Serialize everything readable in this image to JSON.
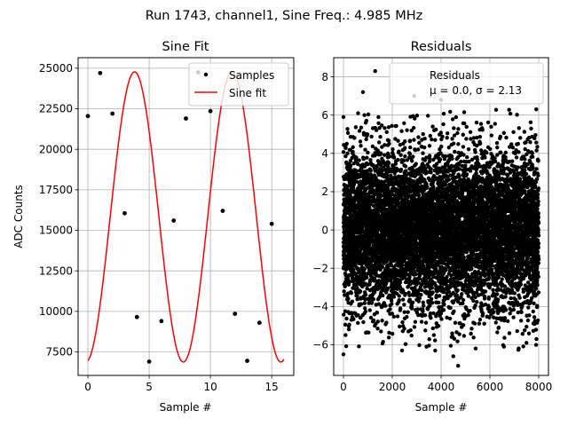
{
  "suptitle": "Run 1743, channel1, Sine Freq.: 4.985 MHz",
  "chart_data": [
    {
      "type": "scatter",
      "title": "Sine Fit",
      "xlabel": "Sample #",
      "ylabel": "ADC Counts",
      "xlim": [
        -0.8,
        16.8
      ],
      "ylim": [
        6050,
        25650
      ],
      "xticks": [
        0,
        5,
        10,
        15
      ],
      "yticks": [
        7500,
        10000,
        12500,
        15000,
        17500,
        20000,
        22500,
        25000
      ],
      "grid": true,
      "legend_position": "top-right",
      "series": [
        {
          "name": "Samples",
          "kind": "points",
          "color": "#000000",
          "x": [
            0,
            1,
            2,
            3,
            4,
            5,
            6,
            7,
            8,
            9,
            10,
            11,
            12,
            13,
            14,
            15
          ],
          "y": [
            22050,
            24700,
            22200,
            16050,
            9650,
            6900,
            9400,
            15600,
            21900,
            24750,
            22350,
            16200,
            9850,
            6950,
            9300,
            15400
          ]
        },
        {
          "name": "Sine fit",
          "kind": "line",
          "color": "#ff0000",
          "model": {
            "offset": 15825,
            "amplitude": 8950,
            "period": 7.96,
            "phase_deg": 277.8,
            "x_range": [
              0,
              16
            ]
          }
        }
      ]
    },
    {
      "type": "scatter",
      "title": "Residuals",
      "xlabel": "Sample #",
      "ylabel": "",
      "xlim": [
        -400,
        8400
      ],
      "ylim": [
        -7.6,
        9.0
      ],
      "xticks": [
        0,
        2000,
        4000,
        6000,
        8000
      ],
      "yticks": [
        -6,
        -4,
        -2,
        0,
        2,
        4,
        6,
        8
      ],
      "grid": true,
      "legend_position": "top-right",
      "series": [
        {
          "name": "Residuals",
          "kind": "points",
          "color": "#000000",
          "n_points": 8000,
          "mean": 0.0,
          "sigma": 2.13,
          "x_range": [
            0,
            7999
          ],
          "y_range": [
            -7.1,
            8.3
          ],
          "extremes": [
            [
              0,
              5.9
            ],
            [
              0,
              -6.5
            ],
            [
              600,
              6.1
            ],
            [
              800,
              7.2
            ],
            [
              1300,
              8.3
            ],
            [
              2900,
              7.0
            ],
            [
              4000,
              6.8
            ],
            [
              4700,
              -7.1
            ],
            [
              4500,
              -6.6
            ],
            [
              7900,
              6.3
            ],
            [
              7500,
              -5.9
            ],
            [
              3400,
              -6.1
            ],
            [
              2400,
              -6.3
            ]
          ]
        }
      ],
      "legend_labels": [
        "Residuals",
        "μ = 0.0, σ = 2.13"
      ]
    }
  ]
}
